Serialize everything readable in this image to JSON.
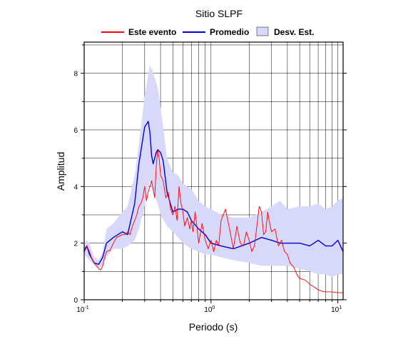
{
  "chart_data": {
    "type": "line",
    "title": "Sitio SLPF",
    "xlabel": "Periodo (s)",
    "ylabel": "Amplitud",
    "xscale": "log",
    "xlim": [
      0.1,
      11
    ],
    "ylim": [
      0,
      9.1
    ],
    "x_ticks": [
      {
        "value": 0.1,
        "base": "10",
        "exp": "-1"
      },
      {
        "value": 1,
        "base": "10",
        "exp": "0"
      },
      {
        "value": 10,
        "base": "10",
        "exp": "1"
      }
    ],
    "y_ticks": [
      0,
      2,
      4,
      6,
      8
    ],
    "grid": true,
    "legend_position": "top",
    "legend": [
      {
        "label": "Este evento",
        "color": "#ff0000",
        "kind": "line"
      },
      {
        "label": "Promedio",
        "color": "#0000dd",
        "kind": "line"
      },
      {
        "label": "Desv. Est.",
        "color": "#d8d8fa",
        "kind": "patch"
      }
    ],
    "band": {
      "name": "Desv. Est.",
      "color": "#d8d8fa",
      "x": [
        0.1,
        0.105,
        0.11,
        0.12,
        0.13,
        0.14,
        0.15,
        0.17,
        0.2,
        0.22,
        0.25,
        0.27,
        0.3,
        0.33,
        0.35,
        0.38,
        0.4,
        0.45,
        0.5,
        0.55,
        0.6,
        0.7,
        0.8,
        0.9,
        1.0,
        1.2,
        1.5,
        2.0,
        2.5,
        3.0,
        3.5,
        4.0,
        5.0,
        6.0,
        7.0,
        8.0,
        9.0,
        10.0,
        11.0
      ],
      "upper": [
        2.0,
        2.1,
        2.0,
        1.5,
        1.4,
        1.7,
        2.5,
        2.7,
        3.1,
        3.3,
        4.4,
        5.5,
        7.2,
        8.3,
        8.0,
        7.5,
        6.8,
        5.0,
        4.5,
        4.4,
        4.1,
        3.9,
        3.5,
        3.3,
        3.2,
        3.0,
        2.9,
        2.9,
        3.1,
        3.3,
        3.5,
        3.2,
        3.3,
        3.3,
        3.4,
        3.2,
        3.3,
        3.5,
        3.6
      ],
      "lower": [
        1.6,
        1.5,
        1.4,
        1.2,
        1.1,
        1.2,
        1.5,
        1.8,
        1.8,
        1.9,
        2.1,
        2.5,
        3.3,
        4.2,
        3.8,
        3.4,
        3.0,
        2.6,
        2.4,
        2.2,
        2.0,
        1.8,
        1.7,
        1.6,
        1.6,
        1.5,
        1.4,
        1.3,
        1.2,
        1.2,
        1.2,
        1.2,
        1.1,
        1.0,
        0.9,
        0.9,
        0.8,
        0.9,
        0.9
      ]
    },
    "series": [
      {
        "name": "Promedio",
        "color": "#0000dd",
        "x": [
          0.1,
          0.105,
          0.11,
          0.12,
          0.13,
          0.14,
          0.15,
          0.17,
          0.2,
          0.22,
          0.25,
          0.27,
          0.3,
          0.32,
          0.33,
          0.34,
          0.35,
          0.37,
          0.38,
          0.4,
          0.42,
          0.45,
          0.5,
          0.55,
          0.6,
          0.65,
          0.7,
          0.8,
          0.9,
          1.0,
          1.2,
          1.5,
          2.0,
          2.5,
          3.0,
          3.5,
          4.0,
          5.0,
          6.0,
          7.0,
          8.0,
          9.0,
          10.0,
          11.0
        ],
        "y": [
          1.7,
          1.9,
          1.6,
          1.3,
          1.25,
          1.5,
          2.0,
          2.2,
          2.4,
          2.3,
          3.4,
          4.8,
          6.1,
          6.3,
          5.9,
          5.1,
          4.8,
          5.2,
          5.3,
          5.2,
          4.9,
          3.8,
          3.1,
          3.2,
          3.2,
          3.1,
          2.8,
          2.5,
          2.3,
          2.0,
          1.9,
          1.8,
          2.0,
          2.2,
          2.1,
          2.0,
          2.0,
          2.0,
          1.9,
          2.1,
          1.9,
          1.9,
          2.1,
          1.7
        ]
      },
      {
        "name": "Este evento",
        "color": "#ff0000",
        "x": [
          0.1,
          0.105,
          0.11,
          0.115,
          0.12,
          0.125,
          0.13,
          0.135,
          0.14,
          0.145,
          0.15,
          0.16,
          0.17,
          0.18,
          0.19,
          0.2,
          0.21,
          0.22,
          0.23,
          0.24,
          0.25,
          0.26,
          0.27,
          0.28,
          0.29,
          0.3,
          0.31,
          0.32,
          0.33,
          0.34,
          0.35,
          0.36,
          0.37,
          0.38,
          0.39,
          0.4,
          0.42,
          0.44,
          0.46,
          0.48,
          0.5,
          0.52,
          0.54,
          0.56,
          0.58,
          0.6,
          0.62,
          0.65,
          0.68,
          0.7,
          0.72,
          0.75,
          0.8,
          0.85,
          0.9,
          0.95,
          1.0,
          1.05,
          1.1,
          1.15,
          1.2,
          1.3,
          1.4,
          1.5,
          1.6,
          1.7,
          1.8,
          1.9,
          2.0,
          2.1,
          2.2,
          2.3,
          2.4,
          2.5,
          2.6,
          2.7,
          2.8,
          2.9,
          3.0,
          3.2,
          3.4,
          3.6,
          3.8,
          4.0,
          4.2,
          4.5,
          4.8,
          5.0,
          5.5,
          6.0,
          6.5,
          7.0,
          7.5,
          8.0,
          9.0,
          10.0,
          11.0
        ],
        "y": [
          1.8,
          1.9,
          1.7,
          1.45,
          1.3,
          1.2,
          1.1,
          1.05,
          1.2,
          1.5,
          1.7,
          1.75,
          2.0,
          2.2,
          2.25,
          2.3,
          2.3,
          2.4,
          2.3,
          2.6,
          2.8,
          3.0,
          3.3,
          3.4,
          3.6,
          4.0,
          3.5,
          3.8,
          4.0,
          4.2,
          3.9,
          3.6,
          4.7,
          5.3,
          5.0,
          4.4,
          4.2,
          3.6,
          3.8,
          3.2,
          3.0,
          3.3,
          2.8,
          4.0,
          3.4,
          3.1,
          2.6,
          2.9,
          2.5,
          2.8,
          2.4,
          3.1,
          2.0,
          2.7,
          2.1,
          1.8,
          2.1,
          1.7,
          2.1,
          1.9,
          2.8,
          3.2,
          2.5,
          1.8,
          2.6,
          2.0,
          1.9,
          2.4,
          2.1,
          1.7,
          1.9,
          2.6,
          3.3,
          3.1,
          2.3,
          2.4,
          3.1,
          2.7,
          2.4,
          2.5,
          1.9,
          2.1,
          1.7,
          1.6,
          1.3,
          1.15,
          0.85,
          0.75,
          0.7,
          0.55,
          0.45,
          0.35,
          0.3,
          0.28,
          0.28,
          0.25,
          0.25
        ]
      }
    ]
  }
}
